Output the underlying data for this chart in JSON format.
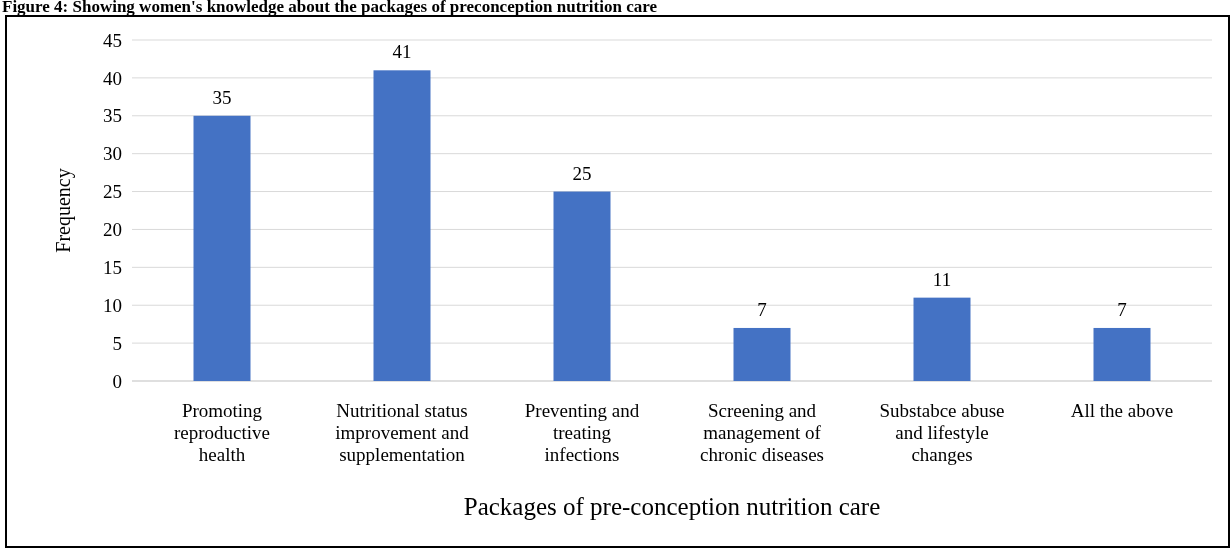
{
  "chart_data": {
    "type": "bar",
    "title": "Figure 4: Showing women's knowledge about the packages of preconception nutrition care",
    "xlabel": "Packages of pre-conception nutrition care",
    "ylabel": "Frequency",
    "categories": [
      "Promoting reproductive health",
      "Nutritional status improvement and supplementation",
      "Preventing and treating infections",
      "Screening and management of chronic diseases",
      "Substabce abuse and lifestyle changes",
      "All the above"
    ],
    "values": [
      35,
      41,
      25,
      7,
      11,
      7
    ],
    "color": "#4472c4",
    "ylim": [
      0,
      45
    ],
    "yticks": [
      0,
      5,
      10,
      15,
      20,
      25,
      30,
      35,
      40,
      45
    ],
    "grid": "y",
    "data_labels": true
  }
}
